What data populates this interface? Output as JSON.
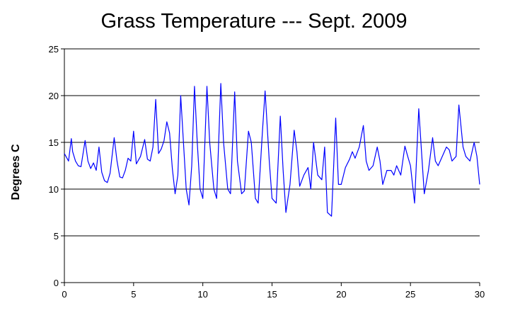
{
  "chart_data": {
    "type": "line",
    "title": "Grass Temperature --- Sept. 2009",
    "xlabel": "",
    "ylabel": "Degrees C",
    "xlim": [
      0,
      30
    ],
    "ylim": [
      0,
      25
    ],
    "x_ticks": [
      "0",
      "5",
      "10",
      "15",
      "20",
      "25",
      "30"
    ],
    "y_ticks": [
      "0",
      "5",
      "10",
      "15",
      "20",
      "25"
    ],
    "grid": "horizontal",
    "line_color": "#0000ff",
    "series": [
      {
        "x": [
          0,
          0.3,
          0.5,
          0.6,
          0.8,
          1.0,
          1.2,
          1.5,
          1.7,
          1.9,
          2.1,
          2.3,
          2.5,
          2.7,
          2.9,
          3.1,
          3.3,
          3.6,
          3.8,
          4.0,
          4.2,
          4.4,
          4.6,
          4.8,
          5.0,
          5.2,
          5.5,
          5.8,
          6.0,
          6.2,
          6.4,
          6.6,
          6.8,
          7.0,
          7.2,
          7.4,
          7.6,
          7.8,
          8.0,
          8.2,
          8.4,
          8.6,
          8.8,
          9.0,
          9.2,
          9.4,
          9.6,
          9.8,
          10.0,
          10.3,
          10.5,
          10.8,
          11.0,
          11.3,
          11.5,
          11.8,
          12.0,
          12.3,
          12.5,
          12.8,
          13.0,
          13.3,
          13.5,
          13.8,
          14.0,
          14.3,
          14.5,
          14.8,
          15.0,
          15.3,
          15.6,
          15.8,
          16.0,
          16.3,
          16.6,
          16.8,
          17.0,
          17.3,
          17.6,
          17.8,
          18.0,
          18.3,
          18.6,
          18.8,
          19.0,
          19.3,
          19.6,
          19.8,
          20.0,
          20.3,
          20.6,
          20.8,
          21.0,
          21.3,
          21.6,
          21.8,
          22.0,
          22.3,
          22.6,
          22.8,
          23.0,
          23.3,
          23.6,
          23.8,
          24.0,
          24.3,
          24.6,
          24.8,
          25.0,
          25.3,
          25.6,
          25.8,
          26.0,
          26.3,
          26.6,
          26.8,
          27.0,
          27.3,
          27.6,
          27.8,
          28.0,
          28.3,
          28.5,
          28.8,
          29.0,
          29.3,
          29.6,
          29.8,
          30.0
        ],
        "y": [
          13.8,
          13.0,
          15.4,
          14.0,
          13.0,
          12.5,
          12.4,
          15.2,
          13.0,
          12.2,
          12.8,
          12.0,
          14.5,
          11.8,
          10.9,
          10.7,
          11.7,
          15.5,
          13.0,
          11.3,
          11.2,
          12.0,
          13.3,
          13.0,
          16.2,
          12.7,
          13.5,
          15.3,
          13.2,
          13.0,
          14.5,
          19.6,
          13.8,
          14.3,
          15.2,
          17.2,
          16.0,
          12.2,
          9.5,
          11.5,
          20.0,
          15.0,
          10.0,
          8.3,
          12.5,
          21.0,
          15.0,
          10.0,
          9.0,
          21.0,
          15.0,
          10.0,
          9.0,
          21.3,
          15.0,
          10.0,
          9.5,
          20.4,
          13.0,
          9.5,
          9.8,
          16.2,
          15.0,
          9.0,
          8.5,
          16.0,
          20.5,
          13.0,
          9.0,
          8.5,
          17.8,
          12.0,
          7.5,
          10.5,
          16.3,
          14.0,
          10.3,
          11.5,
          12.3,
          10.0,
          15.0,
          11.5,
          11.0,
          14.5,
          7.5,
          7.1,
          17.6,
          10.5,
          10.5,
          12.3,
          13.2,
          14.0,
          13.3,
          14.5,
          16.8,
          13.0,
          12.0,
          12.5,
          14.5,
          13.0,
          10.5,
          12.0,
          12.0,
          11.5,
          12.5,
          11.5,
          14.6,
          13.5,
          12.5,
          8.5,
          18.6,
          14.0,
          9.5,
          12.0,
          15.5,
          13.0,
          12.5,
          13.5,
          14.5,
          14.2,
          13.0,
          13.5,
          19.0,
          14.5,
          13.5,
          13.0,
          15.0,
          13.5,
          10.5
        ]
      }
    ]
  }
}
